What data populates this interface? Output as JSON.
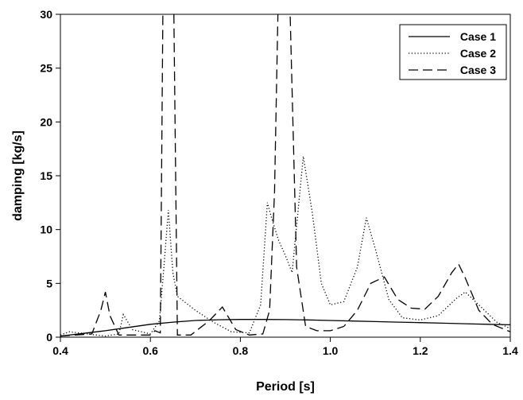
{
  "chart_data": {
    "type": "line",
    "title": "",
    "xlabel": "Period [s]",
    "ylabel": "damping [kg/s]",
    "xlim": [
      0.4,
      1.4
    ],
    "ylim": [
      0,
      30
    ],
    "xticks": [
      0.4,
      0.6,
      0.8,
      1.0,
      1.2,
      1.4
    ],
    "xtick_labels": [
      "0.4",
      "0.6",
      "0.8",
      "1.0",
      "1.2",
      "1.4"
    ],
    "yticks": [
      0,
      5,
      10,
      15,
      20,
      25,
      30
    ],
    "ytick_labels": [
      "0",
      "5",
      "10",
      "15",
      "20",
      "25",
      "30"
    ],
    "grid": false,
    "legend": {
      "position": "top-right"
    },
    "series": [
      {
        "name": "Case 1",
        "style": "solid",
        "color": "#000000",
        "x": [
          0.4,
          0.45,
          0.5,
          0.55,
          0.6,
          0.65,
          0.7,
          0.75,
          0.8,
          0.85,
          0.9,
          0.95,
          1.0,
          1.05,
          1.1,
          1.15,
          1.2,
          1.25,
          1.3,
          1.35,
          1.4
        ],
        "y": [
          0.1,
          0.35,
          0.6,
          0.9,
          1.2,
          1.4,
          1.55,
          1.62,
          1.65,
          1.65,
          1.63,
          1.6,
          1.55,
          1.5,
          1.45,
          1.4,
          1.35,
          1.3,
          1.25,
          1.2,
          1.15
        ]
      },
      {
        "name": "Case 2",
        "style": "dotted",
        "color": "#000000",
        "x": [
          0.4,
          0.42,
          0.46,
          0.5,
          0.53,
          0.54,
          0.56,
          0.6,
          0.62,
          0.63,
          0.64,
          0.65,
          0.66,
          0.7,
          0.74,
          0.78,
          0.82,
          0.845,
          0.86,
          0.87,
          0.885,
          0.9,
          0.915,
          0.94,
          0.96,
          0.98,
          1.0,
          1.03,
          1.06,
          1.08,
          1.1,
          1.13,
          1.16,
          1.2,
          1.24,
          1.28,
          1.3,
          1.33,
          1.37,
          1.4
        ],
        "y": [
          0.2,
          0.5,
          0.3,
          0.1,
          0.3,
          2.1,
          0.7,
          0.3,
          1.5,
          6.5,
          11.8,
          6.0,
          3.8,
          2.5,
          1.4,
          0.5,
          0.4,
          3.0,
          12.5,
          11.0,
          9.0,
          7.6,
          6.0,
          16.8,
          11.5,
          5.0,
          3.0,
          3.3,
          6.5,
          11.1,
          8.2,
          3.5,
          1.8,
          1.6,
          2.0,
          3.6,
          4.2,
          3.0,
          1.4,
          0.8
        ]
      },
      {
        "name": "Case 3",
        "style": "dashed",
        "color": "#000000",
        "x": [
          0.4,
          0.47,
          0.49,
          0.5,
          0.51,
          0.53,
          0.6,
          0.61,
          0.622,
          0.628,
          0.652,
          0.66,
          0.69,
          0.73,
          0.76,
          0.79,
          0.82,
          0.85,
          0.865,
          0.876,
          0.884,
          0.893,
          0.91,
          0.925,
          0.945,
          0.97,
          1.0,
          1.03,
          1.06,
          1.09,
          1.12,
          1.15,
          1.18,
          1.21,
          1.24,
          1.27,
          1.285,
          1.3,
          1.33,
          1.36,
          1.4
        ],
        "y": [
          0.1,
          0.3,
          2.5,
          4.2,
          2.0,
          0.2,
          0.2,
          0.6,
          0.4,
          31,
          31,
          0.2,
          0.2,
          1.5,
          2.8,
          0.7,
          0.2,
          0.3,
          2.5,
          13.5,
          31,
          31,
          31,
          6.5,
          1.0,
          0.6,
          0.6,
          1.0,
          2.5,
          5.0,
          5.6,
          3.5,
          2.7,
          2.6,
          3.8,
          6.0,
          6.8,
          5.5,
          2.5,
          1.2,
          0.5
        ]
      }
    ]
  }
}
